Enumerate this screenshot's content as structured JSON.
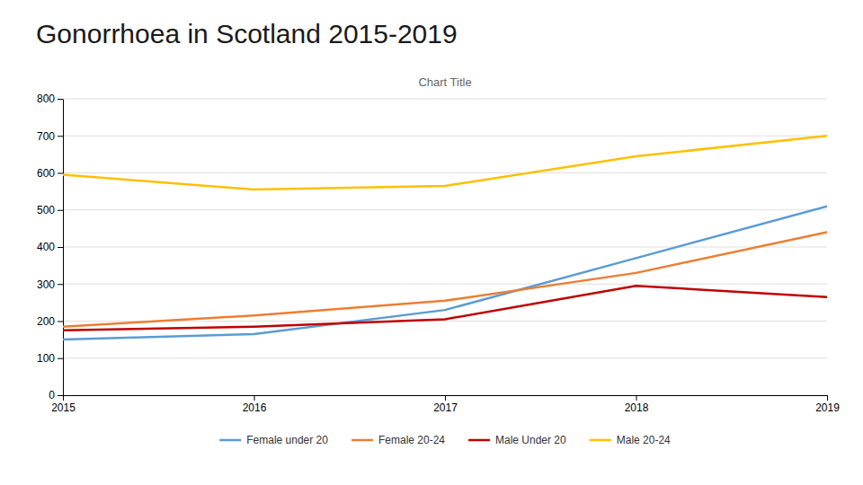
{
  "chart_data": {
    "type": "line",
    "title": "Gonorrhoea in Scotland 2015-2019",
    "subtitle": "Chart Title",
    "x": [
      2015,
      2016,
      2017,
      2018,
      2019
    ],
    "series": [
      {
        "name": "Female under 20",
        "color": "#5B9BD5",
        "values": [
          150,
          165,
          230,
          370,
          510
        ]
      },
      {
        "name": "Female 20-24",
        "color": "#ED7D31",
        "values": [
          185,
          215,
          255,
          330,
          440
        ]
      },
      {
        "name": "Male Under 20",
        "color": "#C00000",
        "values": [
          175,
          185,
          205,
          295,
          265
        ]
      },
      {
        "name": "Male 20-24",
        "color": "#FFC000",
        "values": [
          595,
          555,
          565,
          645,
          700
        ]
      }
    ],
    "xlim": [
      2015,
      2019
    ],
    "xticks": [
      2015,
      2016,
      2017,
      2018,
      2019
    ],
    "ylim": [
      0,
      800
    ],
    "yticks": [
      0,
      100,
      200,
      300,
      400,
      500,
      600,
      700,
      800
    ],
    "grid": true,
    "legend": "bottom"
  }
}
